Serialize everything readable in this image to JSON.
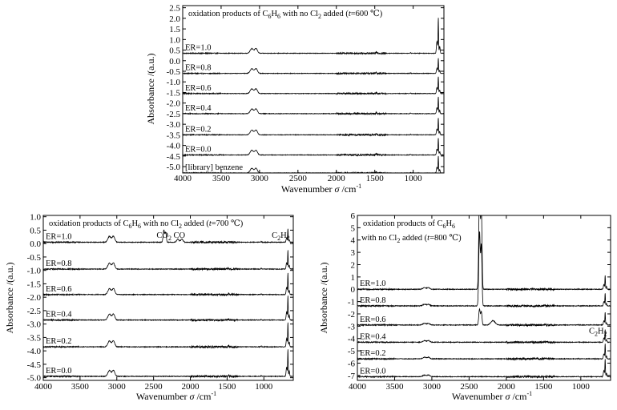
{
  "chart_data": [
    {
      "type": "line",
      "title_parts": {
        "pre": "oxidation products of C",
        "sub1": "6",
        "mid": "H",
        "sub2": "6",
        "mid2": " with no Cl",
        "sub3": "2",
        "post": " added (",
        "t": "t",
        "temp": "=600 ℃)"
      },
      "xlabel": "Wavenumber",
      "xlabel_sym": "σ",
      "xlabel_unit": " /cm",
      "xlabel_sup": "-1",
      "ylabel": "Absorbance /(a.u.)",
      "xlim": [
        4000,
        600
      ],
      "ylim": [
        -5.3,
        2.6
      ],
      "xticks": [
        4000,
        3500,
        3000,
        2500,
        2000,
        1500,
        1000
      ],
      "xtick_labels": [
        "4000",
        "3500",
        "3000",
        "2500",
        "2000",
        "1500",
        "1000"
      ],
      "yticks": [
        2.5,
        2.0,
        1.5,
        1.0,
        0.5,
        0.0,
        -0.5,
        -1.0,
        -1.5,
        -2.0,
        -2.5,
        -3.0,
        -3.5,
        -4.0,
        -4.5,
        -5.0
      ],
      "ytick_labels": [
        "2.5",
        "2.0",
        "1.5",
        "1.0",
        "0.5",
        "0.0",
        "-0.5",
        "-1.0",
        "-1.5",
        "-2.0",
        "-2.5",
        "-3.0",
        "-3.5",
        "-4.0",
        "-4.5",
        "-5.0"
      ],
      "series": [
        {
          "name": "ER=1.0",
          "baseline": 0.35,
          "strong_peak": 1.65
        },
        {
          "name": "ER=0.8",
          "baseline": -0.6,
          "strong_peak": 0.7
        },
        {
          "name": "ER=0.6",
          "baseline": -1.55,
          "strong_peak": 0.8
        },
        {
          "name": "ER=0.4",
          "baseline": -2.5,
          "strong_peak": 0.8
        },
        {
          "name": "ER=0.2",
          "baseline": -3.5,
          "strong_peak": 0.8
        },
        {
          "name": "ER=0.0",
          "baseline": -4.45,
          "strong_peak": 0.8
        },
        {
          "name": "[library] benzene",
          "baseline": -5.3,
          "strong_peak": 0.8
        }
      ]
    },
    {
      "type": "line",
      "title_parts": {
        "pre": "oxidation products of C",
        "sub1": "6",
        "mid": "H",
        "sub2": "6",
        "mid2": " with no Cl",
        "sub3": "2",
        "post": " added (",
        "t": "t",
        "temp": "=700 ℃)"
      },
      "annotations": [
        {
          "main": "CO",
          "sub": "2",
          "x": 2350
        },
        {
          "main": "CO",
          "sub": "",
          "x": 2120
        },
        {
          "main": "C",
          "sub": "2",
          "main2": "H",
          "sub2": "2",
          "x": 740
        }
      ],
      "xlabel": "Wavenumber",
      "xlabel_sym": "σ",
      "xlabel_unit": " /cm",
      "xlabel_sup": "-1",
      "ylabel": "Absorbance /(a.u.)",
      "xlim": [
        4000,
        600
      ],
      "ylim": [
        -5.1,
        1.05
      ],
      "xticks": [
        4000,
        3500,
        3000,
        2500,
        2000,
        1500,
        1000
      ],
      "xtick_labels": [
        "4000",
        "3500",
        "3000",
        "2500",
        "2000",
        "1500",
        "1000"
      ],
      "yticks": [
        1.0,
        0.5,
        0.0,
        -0.5,
        -1.0,
        -1.5,
        -2.0,
        -2.5,
        -3.0,
        -3.5,
        -4.0,
        -4.5,
        -5.0
      ],
      "ytick_labels": [
        "1.0",
        "0.5",
        "0.0",
        "-0.5",
        "-1.0",
        "-1.5",
        "-2.0",
        "-2.5",
        "-3.0",
        "-3.5",
        "-4.0",
        "-4.5",
        "-5.0"
      ],
      "series": [
        {
          "name": "ER=1.0",
          "baseline": 0.05,
          "strong_peak": 0.5,
          "co2_peak": 0.45
        },
        {
          "name": "ER=0.8",
          "baseline": -0.95,
          "strong_peak": 0.7
        },
        {
          "name": "ER=0.6",
          "baseline": -1.9,
          "strong_peak": 0.8
        },
        {
          "name": "ER=0.4",
          "baseline": -2.85,
          "strong_peak": 0.9
        },
        {
          "name": "ER=0.2",
          "baseline": -3.85,
          "strong_peak": 0.9
        },
        {
          "name": "ER=0.0",
          "baseline": -4.95,
          "strong_peak": 1.0
        }
      ]
    },
    {
      "type": "line",
      "title_parts": {
        "pre": "oxidation products of C",
        "sub1": "6",
        "mid": "H",
        "sub2": "6",
        "line2_pre": "with no Cl",
        "sub3": "2",
        "post": " added (",
        "t": "t",
        "temp": "=800 ℃)"
      },
      "annotations": [
        {
          "main": "C",
          "sub": "2",
          "main2": "H",
          "sub2": "2",
          "x": 740
        }
      ],
      "xlabel": "Wavenumber",
      "xlabel_sym": "σ",
      "xlabel_unit": " /cm",
      "xlabel_sup": "-1",
      "ylabel": "Absorbance /(a.u.)",
      "xlim": [
        4000,
        600
      ],
      "ylim": [
        -7.4,
        6.0
      ],
      "xticks": [
        4000,
        3500,
        3000,
        2500,
        2000,
        1500,
        1000
      ],
      "xtick_labels": [
        "4000",
        "3500",
        "3000",
        "2500",
        "2000",
        "1500",
        "1000"
      ],
      "yticks": [
        6,
        5,
        4,
        3,
        2,
        1,
        0,
        -1,
        -2,
        -3,
        -4,
        -5,
        -6,
        -7
      ],
      "ytick_labels": [
        "6",
        "5",
        "4",
        "3",
        "2",
        "1",
        "0",
        "-1",
        "-2",
        "-3",
        "-4",
        "-5",
        "-6",
        "-7"
      ],
      "series": [
        {
          "name": "ER=1.0",
          "baseline": 0.0,
          "strong_peak": 1.1,
          "co2_peak": 8.0
        },
        {
          "name": "ER=0.8",
          "baseline": -1.35,
          "strong_peak": 1.0,
          "co2_peak": 6.0
        },
        {
          "name": "ER=0.6",
          "baseline": -2.9,
          "strong_peak": 1.0,
          "co2_peak": 1.3
        },
        {
          "name": "ER=0.4",
          "baseline": -4.3,
          "strong_peak": 1.0
        },
        {
          "name": "ER=0.2",
          "baseline": -5.65,
          "strong_peak": 1.2
        },
        {
          "name": "ER=0.0",
          "baseline": -7.1,
          "strong_peak": 1.4
        }
      ]
    }
  ]
}
